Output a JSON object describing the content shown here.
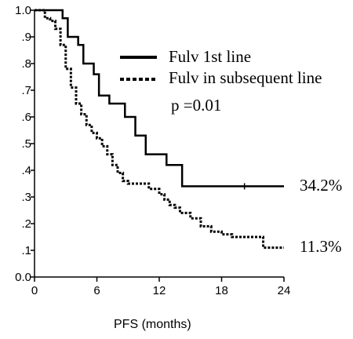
{
  "chart_data": {
    "type": "line",
    "xlabel": "PFS (months)",
    "ylabel": "",
    "xlim": [
      0,
      24
    ],
    "ylim": [
      0,
      1
    ],
    "xticks": [
      0,
      6,
      12,
      18,
      24
    ],
    "xtick_labels": [
      "0",
      "6",
      "12",
      "18",
      "24"
    ],
    "yticks": [
      0,
      0.1,
      0.2,
      0.3,
      0.4,
      0.5,
      0.6,
      0.7,
      0.8,
      0.9,
      1.0
    ],
    "ytick_labels": [
      "0.0",
      ".1",
      ".2",
      ".3",
      ".4",
      ".5",
      ".6",
      ".7",
      ".8",
      ".9",
      "1.0"
    ],
    "grid": false,
    "legend_position": "top-right",
    "annotation": "p =0.01",
    "series": [
      {
        "name": "Fulv 1st line",
        "style": "solid",
        "end_label": "34.2%",
        "x": [
          0,
          1.2,
          2.7,
          3.2,
          4.2,
          4.7,
          5.7,
          6.2,
          7.2,
          8.7,
          9.7,
          10.7,
          12.7,
          14.2,
          24
        ],
        "y": [
          1.0,
          1.0,
          0.97,
          0.9,
          0.87,
          0.8,
          0.76,
          0.68,
          0.65,
          0.6,
          0.53,
          0.46,
          0.42,
          0.34,
          0.34
        ],
        "censor_x": [
          20.2
        ]
      },
      {
        "name": "Fulv in subsequent line",
        "style": "dotted",
        "end_label": "11.3%",
        "x": [
          0,
          1.0,
          1.5,
          2.0,
          2.5,
          3.0,
          3.5,
          4.0,
          4.5,
          5.0,
          5.5,
          6.0,
          6.5,
          7.0,
          7.5,
          8.0,
          8.5,
          9.0,
          9.5,
          10.0,
          11.0,
          12.0,
          12.5,
          13.0,
          13.5,
          14.0,
          15.0,
          16.0,
          17.0,
          18.0,
          19.0,
          20.0,
          21.0,
          22.0,
          24
        ],
        "y": [
          1.0,
          0.97,
          0.96,
          0.93,
          0.87,
          0.78,
          0.71,
          0.65,
          0.61,
          0.57,
          0.54,
          0.52,
          0.49,
          0.46,
          0.42,
          0.39,
          0.36,
          0.35,
          0.35,
          0.35,
          0.33,
          0.31,
          0.29,
          0.27,
          0.26,
          0.24,
          0.22,
          0.19,
          0.17,
          0.16,
          0.15,
          0.15,
          0.15,
          0.11,
          0.11
        ]
      }
    ]
  }
}
